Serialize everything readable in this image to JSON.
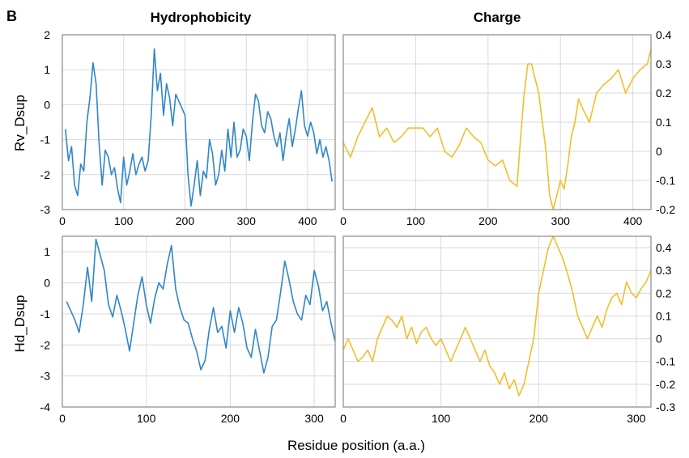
{
  "figure": {
    "panel_letter": "B",
    "columns": [
      "Hydrophobicity",
      "Charge"
    ],
    "rows": [
      "Rv_Dsup",
      "Hd_Dsup"
    ],
    "xlabel": "Residue position (a.a.)",
    "colors": {
      "hydrophobicity": "#2E86C9",
      "charge": "#F2BE2C",
      "grid": "#d9d9d9",
      "frame": "#888888"
    }
  },
  "chart_data": [
    {
      "type": "line",
      "row": "Rv_Dsup",
      "column": "Hydrophobicity",
      "xlim": [
        0,
        445
      ],
      "ylim": [
        -3,
        2
      ],
      "xticks": [
        0,
        100,
        200,
        300,
        400
      ],
      "yticks": [
        2,
        1,
        0,
        -1,
        -2,
        -3
      ],
      "ytick_side": "left",
      "series": [
        {
          "color": "#2E86C9",
          "x": [
            5,
            10,
            15,
            20,
            25,
            30,
            35,
            40,
            45,
            50,
            55,
            60,
            65,
            70,
            75,
            80,
            85,
            90,
            95,
            100,
            105,
            110,
            115,
            120,
            125,
            130,
            135,
            140,
            145,
            150,
            155,
            160,
            165,
            170,
            175,
            180,
            185,
            190,
            195,
            200,
            205,
            210,
            215,
            220,
            225,
            230,
            235,
            240,
            245,
            250,
            255,
            260,
            265,
            270,
            275,
            280,
            285,
            290,
            295,
            300,
            305,
            310,
            315,
            320,
            325,
            330,
            335,
            340,
            345,
            350,
            355,
            360,
            365,
            370,
            375,
            380,
            385,
            390,
            395,
            400,
            405,
            410,
            415,
            420,
            425,
            430,
            435,
            440
          ],
          "y": [
            -0.7,
            -1.6,
            -1.2,
            -2.3,
            -2.6,
            -1.7,
            -1.9,
            -0.5,
            0.2,
            1.2,
            0.6,
            -1.1,
            -2.3,
            -1.3,
            -1.5,
            -2.0,
            -1.8,
            -2.4,
            -2.8,
            -1.5,
            -2.3,
            -1.9,
            -1.4,
            -2.0,
            -1.7,
            -1.5,
            -1.9,
            -1.6,
            -0.3,
            1.6,
            0.4,
            0.9,
            -0.3,
            0.6,
            0.2,
            -0.6,
            0.3,
            0.1,
            -0.1,
            -0.3,
            -2.0,
            -2.9,
            -2.3,
            -1.6,
            -2.6,
            -1.9,
            -2.1,
            -1.0,
            -1.4,
            -2.3,
            -2.0,
            -1.3,
            -1.9,
            -0.7,
            -1.5,
            -0.5,
            -1.5,
            -1.3,
            -0.7,
            -0.9,
            -1.6,
            -0.5,
            0.3,
            0.1,
            -0.6,
            -0.8,
            -0.2,
            -0.4,
            -0.9,
            -1.2,
            -0.8,
            -1.6,
            -0.9,
            -0.4,
            -1.2,
            -0.7,
            -0.1,
            0.4,
            -0.6,
            -0.9,
            -0.5,
            -0.8,
            -1.4,
            -1.0,
            -1.5,
            -1.2,
            -1.6,
            -2.2
          ]
        }
      ]
    },
    {
      "type": "line",
      "row": "Rv_Dsup",
      "column": "Charge",
      "xlim": [
        0,
        425
      ],
      "ylim": [
        -0.2,
        0.4
      ],
      "xticks": [
        0,
        100,
        200,
        300,
        400
      ],
      "yticks": [
        0.4,
        0.3,
        0.2,
        0.1,
        0,
        -0.1,
        -0.2
      ],
      "ytick_side": "right",
      "series": [
        {
          "color": "#F2BE2C",
          "x": [
            0,
            10,
            20,
            30,
            40,
            50,
            60,
            70,
            80,
            90,
            100,
            110,
            120,
            130,
            140,
            150,
            160,
            170,
            180,
            190,
            200,
            210,
            220,
            230,
            240,
            245,
            250,
            255,
            260,
            265,
            270,
            275,
            280,
            285,
            290,
            295,
            300,
            305,
            310,
            315,
            320,
            325,
            330,
            340,
            350,
            360,
            370,
            380,
            390,
            400,
            410,
            420,
            425
          ],
          "y": [
            0.03,
            -0.02,
            0.05,
            0.1,
            0.15,
            0.05,
            0.08,
            0.03,
            0.05,
            0.08,
            0.08,
            0.08,
            0.05,
            0.08,
            0.0,
            -0.02,
            0.02,
            0.08,
            0.05,
            0.03,
            -0.03,
            -0.05,
            -0.03,
            -0.1,
            -0.12,
            0.05,
            0.2,
            0.3,
            0.3,
            0.25,
            0.2,
            0.1,
            0.0,
            -0.15,
            -0.2,
            -0.15,
            -0.1,
            -0.13,
            -0.05,
            0.05,
            0.1,
            0.18,
            0.15,
            0.1,
            0.2,
            0.23,
            0.25,
            0.28,
            0.2,
            0.25,
            0.28,
            0.3,
            0.35
          ]
        }
      ]
    },
    {
      "type": "line",
      "row": "Hd_Dsup",
      "column": "Hydrophobicity",
      "xlim": [
        0,
        325
      ],
      "ylim": [
        -4,
        1.5
      ],
      "xticks": [
        0,
        100,
        200,
        300
      ],
      "yticks": [
        1,
        0,
        -1,
        -2,
        -3,
        -4
      ],
      "ytick_side": "left",
      "series": [
        {
          "color": "#2E86C9",
          "x": [
            5,
            10,
            15,
            20,
            25,
            30,
            35,
            40,
            45,
            50,
            55,
            60,
            65,
            70,
            75,
            80,
            85,
            90,
            95,
            100,
            105,
            110,
            115,
            120,
            125,
            130,
            135,
            140,
            145,
            150,
            155,
            160,
            165,
            170,
            175,
            180,
            185,
            190,
            195,
            200,
            205,
            210,
            215,
            220,
            225,
            230,
            235,
            240,
            245,
            250,
            255,
            260,
            265,
            270,
            275,
            280,
            285,
            290,
            295,
            300,
            305,
            310,
            315,
            320,
            325
          ],
          "y": [
            -0.6,
            -0.9,
            -1.2,
            -1.6,
            -0.7,
            0.5,
            -0.6,
            1.4,
            0.9,
            0.4,
            -0.7,
            -1.1,
            -0.4,
            -0.9,
            -1.5,
            -2.2,
            -1.3,
            -0.4,
            0.2,
            -0.7,
            -1.3,
            -0.5,
            0.0,
            -0.2,
            0.6,
            1.2,
            -0.2,
            -0.8,
            -1.2,
            -1.3,
            -1.8,
            -2.2,
            -2.8,
            -2.5,
            -1.5,
            -0.8,
            -1.6,
            -1.4,
            -2.1,
            -0.9,
            -1.6,
            -0.8,
            -1.3,
            -2.1,
            -2.4,
            -1.5,
            -2.2,
            -2.9,
            -2.4,
            -1.4,
            -1.2,
            -0.3,
            0.7,
            0.1,
            -0.6,
            -1.0,
            -1.2,
            -0.4,
            -0.7,
            0.4,
            -0.1,
            -0.9,
            -0.6,
            -1.3,
            -1.9
          ]
        }
      ]
    },
    {
      "type": "line",
      "row": "Hd_Dsup",
      "column": "Charge",
      "xlim": [
        0,
        315
      ],
      "ylim": [
        -0.3,
        0.45
      ],
      "xticks": [
        0,
        100,
        200,
        300
      ],
      "yticks": [
        0.4,
        0.3,
        0.2,
        0.1,
        0,
        -0.1,
        -0.2,
        -0.3
      ],
      "ytick_side": "right",
      "series": [
        {
          "color": "#F2BE2C",
          "x": [
            0,
            5,
            10,
            15,
            20,
            25,
            30,
            35,
            40,
            45,
            50,
            55,
            60,
            65,
            70,
            75,
            80,
            85,
            90,
            95,
            100,
            105,
            110,
            115,
            120,
            125,
            130,
            135,
            140,
            145,
            150,
            155,
            160,
            165,
            170,
            175,
            180,
            185,
            190,
            195,
            200,
            205,
            210,
            215,
            220,
            225,
            230,
            235,
            240,
            245,
            250,
            255,
            260,
            265,
            270,
            275,
            280,
            285,
            290,
            295,
            300,
            305,
            310,
            315
          ],
          "y": [
            -0.05,
            0.0,
            -0.05,
            -0.1,
            -0.08,
            -0.05,
            -0.1,
            0.0,
            0.05,
            0.1,
            0.08,
            0.05,
            0.1,
            0.0,
            0.05,
            -0.02,
            0.03,
            0.05,
            0.0,
            -0.03,
            0.0,
            -0.05,
            -0.1,
            -0.05,
            0.0,
            0.05,
            0.0,
            -0.05,
            -0.1,
            -0.05,
            -0.12,
            -0.15,
            -0.2,
            -0.15,
            -0.22,
            -0.18,
            -0.25,
            -0.2,
            -0.1,
            0.0,
            0.2,
            0.3,
            0.4,
            0.45,
            0.4,
            0.35,
            0.28,
            0.2,
            0.1,
            0.05,
            0.0,
            0.05,
            0.1,
            0.05,
            0.13,
            0.18,
            0.2,
            0.15,
            0.25,
            0.2,
            0.18,
            0.22,
            0.25,
            0.3
          ]
        }
      ]
    }
  ]
}
